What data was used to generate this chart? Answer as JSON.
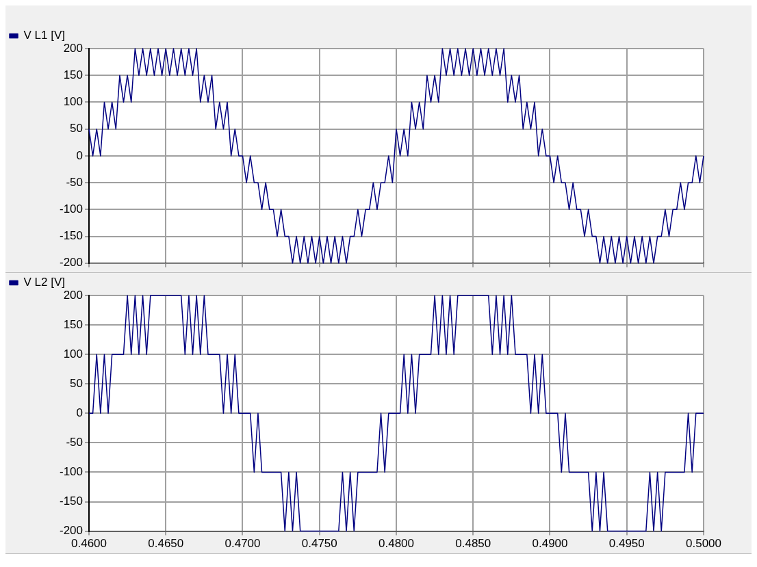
{
  "chart_data": [
    {
      "type": "line",
      "legend": "top left",
      "grid": true,
      "marker": "none",
      "line_style": "solid",
      "tick_labels": "y",
      "x": [
        0.46,
        0.46025,
        0.4605,
        0.46075,
        0.461,
        0.46125,
        0.4615,
        0.46175,
        0.462,
        0.46225,
        0.4625,
        0.46275,
        0.463,
        0.46325,
        0.4635,
        0.46375,
        0.464,
        0.46425,
        0.4645,
        0.46475,
        0.465,
        0.46525,
        0.4655,
        0.46575,
        0.466,
        0.46625,
        0.4665,
        0.46675,
        0.467,
        0.46725,
        0.4675,
        0.46775,
        0.468,
        0.46825,
        0.4685,
        0.46875,
        0.469,
        0.46925,
        0.4695,
        0.46975,
        0.47,
        0.47025,
        0.4705,
        0.47075,
        0.471,
        0.47125,
        0.4715,
        0.47175,
        0.472,
        0.47225,
        0.4725,
        0.47275,
        0.473,
        0.47325,
        0.4735,
        0.47375,
        0.474,
        0.47425,
        0.4745,
        0.47475,
        0.475,
        0.47525,
        0.4755,
        0.47575,
        0.476,
        0.47625,
        0.4765,
        0.47675,
        0.477,
        0.47725,
        0.4775,
        0.47775,
        0.478,
        0.47825,
        0.4785,
        0.47875,
        0.479,
        0.47925,
        0.4795,
        0.47975,
        0.48,
        0.48025,
        0.4805,
        0.48075,
        0.481,
        0.48125,
        0.4815,
        0.48175,
        0.482,
        0.48225,
        0.4825,
        0.48275,
        0.483,
        0.48325,
        0.4835,
        0.48375,
        0.484,
        0.48425,
        0.4845,
        0.48475,
        0.485,
        0.48525,
        0.4855,
        0.48575,
        0.486,
        0.48625,
        0.4865,
        0.48675,
        0.487,
        0.48725,
        0.4875,
        0.48775,
        0.488,
        0.48825,
        0.4885,
        0.48875,
        0.489,
        0.48925,
        0.4895,
        0.48975,
        0.49,
        0.49025,
        0.4905,
        0.49075,
        0.491,
        0.49125,
        0.4915,
        0.49175,
        0.492,
        0.49225,
        0.4925,
        0.49275,
        0.493,
        0.49325,
        0.4935,
        0.49375,
        0.494,
        0.49425,
        0.4945,
        0.49475,
        0.495,
        0.49525,
        0.4955,
        0.49575,
        0.496,
        0.49625,
        0.4965,
        0.49675,
        0.497,
        0.49725,
        0.4975,
        0.49775,
        0.498,
        0.49825,
        0.4985,
        0.49875,
        0.499,
        0.49925,
        0.4995,
        0.49975,
        0.5
      ],
      "xlim": [
        0.46,
        0.5
      ],
      "xticks": [
        0.46,
        0.465,
        0.47,
        0.475,
        0.48,
        0.485,
        0.49,
        0.495,
        0.5
      ],
      "ylim": [
        -200,
        200
      ],
      "yticks": [
        -200,
        -150,
        -100,
        -50,
        0,
        50,
        100,
        150,
        200
      ],
      "series": [
        {
          "name": "V L1 [V]",
          "color": "#000080",
          "values": [
            50,
            0,
            50,
            0,
            100,
            50,
            100,
            50,
            150,
            100,
            150,
            100,
            200,
            150,
            200,
            150,
            200,
            150,
            200,
            150,
            200,
            150,
            200,
            150,
            200,
            150,
            200,
            150,
            200,
            100,
            150,
            100,
            150,
            50,
            100,
            50,
            100,
            0,
            50,
            0,
            0,
            -50,
            0,
            -50,
            -50,
            -100,
            -50,
            -100,
            -100,
            -150,
            -100,
            -150,
            -150,
            -200,
            -150,
            -200,
            -150,
            -200,
            -150,
            -200,
            -150,
            -200,
            -150,
            -200,
            -150,
            -200,
            -150,
            -200,
            -150,
            -150,
            -100,
            -150,
            -100,
            -100,
            -50,
            -100,
            -50,
            -50,
            0,
            -50,
            50,
            0,
            50,
            0,
            100,
            50,
            100,
            50,
            150,
            100,
            150,
            100,
            200,
            150,
            200,
            150,
            200,
            150,
            200,
            150,
            200,
            150,
            200,
            150,
            200,
            150,
            200,
            150,
            200,
            100,
            150,
            100,
            150,
            50,
            100,
            50,
            100,
            0,
            50,
            0,
            0,
            -50,
            0,
            -50,
            -50,
            -100,
            -50,
            -100,
            -100,
            -150,
            -100,
            -150,
            -150,
            -200,
            -150,
            -200,
            -150,
            -200,
            -150,
            -200,
            -150,
            -200,
            -150,
            -200,
            -150,
            -200,
            -150,
            -200,
            -150,
            -150,
            -100,
            -150,
            -100,
            -100,
            -50,
            -100,
            -50,
            -50,
            0,
            -50,
            0
          ]
        }
      ]
    },
    {
      "type": "line",
      "legend": "top left",
      "grid": true,
      "marker": "none",
      "line_style": "solid",
      "x": [
        0.46,
        0.46025,
        0.4605,
        0.46075,
        0.461,
        0.46125,
        0.4615,
        0.46175,
        0.462,
        0.46225,
        0.4625,
        0.46275,
        0.463,
        0.46325,
        0.4635,
        0.46375,
        0.464,
        0.46425,
        0.4645,
        0.46475,
        0.465,
        0.46525,
        0.4655,
        0.46575,
        0.466,
        0.46625,
        0.4665,
        0.46675,
        0.467,
        0.46725,
        0.4675,
        0.46775,
        0.468,
        0.46825,
        0.4685,
        0.46875,
        0.469,
        0.46925,
        0.4695,
        0.46975,
        0.47,
        0.47025,
        0.4705,
        0.47075,
        0.471,
        0.47125,
        0.4715,
        0.47175,
        0.472,
        0.47225,
        0.4725,
        0.47275,
        0.473,
        0.47325,
        0.4735,
        0.47375,
        0.474,
        0.47425,
        0.4745,
        0.47475,
        0.475,
        0.47525,
        0.4755,
        0.47575,
        0.476,
        0.47625,
        0.4765,
        0.47675,
        0.477,
        0.47725,
        0.4775,
        0.47775,
        0.478,
        0.47825,
        0.4785,
        0.47875,
        0.479,
        0.47925,
        0.4795,
        0.47975,
        0.48,
        0.48025,
        0.4805,
        0.48075,
        0.481,
        0.48125,
        0.4815,
        0.48175,
        0.482,
        0.48225,
        0.4825,
        0.48275,
        0.483,
        0.48325,
        0.4835,
        0.48375,
        0.484,
        0.48425,
        0.4845,
        0.48475,
        0.485,
        0.48525,
        0.4855,
        0.48575,
        0.486,
        0.48625,
        0.4865,
        0.48675,
        0.487,
        0.48725,
        0.4875,
        0.48775,
        0.488,
        0.48825,
        0.4885,
        0.48875,
        0.489,
        0.48925,
        0.4895,
        0.48975,
        0.49,
        0.49025,
        0.4905,
        0.49075,
        0.491,
        0.49125,
        0.4915,
        0.49175,
        0.492,
        0.49225,
        0.4925,
        0.49275,
        0.493,
        0.49325,
        0.4935,
        0.49375,
        0.494,
        0.49425,
        0.4945,
        0.49475,
        0.495,
        0.49525,
        0.4955,
        0.49575,
        0.496,
        0.49625,
        0.4965,
        0.49675,
        0.497,
        0.49725,
        0.4975,
        0.49775,
        0.498,
        0.49825,
        0.4985,
        0.49875,
        0.499,
        0.49925,
        0.4995,
        0.49975,
        0.5
      ],
      "xlim": [
        0.46,
        0.5
      ],
      "xticks": [
        {
          "value": 0.46,
          "label": "0.4600"
        },
        {
          "value": 0.465,
          "label": "0.4650"
        },
        {
          "value": 0.47,
          "label": "0.4700"
        },
        {
          "value": 0.475,
          "label": "0.4750"
        },
        {
          "value": 0.48,
          "label": "0.4800"
        },
        {
          "value": 0.485,
          "label": "0.4850"
        },
        {
          "value": 0.49,
          "label": "0.4900"
        },
        {
          "value": 0.495,
          "label": "0.4950"
        },
        {
          "value": 0.5,
          "label": "0.5000"
        }
      ],
      "ylim": [
        -200,
        200
      ],
      "yticks": [
        -200,
        -150,
        -100,
        -50,
        0,
        50,
        100,
        150,
        200
      ],
      "series": [
        {
          "name": "V L2 [V]",
          "color": "#000080",
          "values": [
            0,
            0,
            100,
            0,
            100,
            0,
            100,
            100,
            100,
            100,
            200,
            100,
            200,
            100,
            200,
            100,
            200,
            200,
            200,
            200,
            200,
            200,
            200,
            200,
            200,
            100,
            200,
            100,
            200,
            100,
            200,
            100,
            100,
            100,
            100,
            0,
            100,
            0,
            100,
            0,
            0,
            0,
            0,
            -100,
            0,
            -100,
            -100,
            -100,
            -100,
            -100,
            -100,
            -200,
            -100,
            -200,
            -100,
            -200,
            -200,
            -200,
            -200,
            -200,
            -200,
            -200,
            -200,
            -200,
            -200,
            -200,
            -100,
            -200,
            -100,
            -200,
            -100,
            -100,
            -100,
            -100,
            -100,
            -100,
            0,
            -100,
            0,
            0,
            0,
            0,
            100,
            0,
            100,
            0,
            100,
            100,
            100,
            100,
            200,
            100,
            200,
            100,
            200,
            100,
            200,
            200,
            200,
            200,
            200,
            200,
            200,
            200,
            200,
            100,
            200,
            100,
            200,
            100,
            200,
            100,
            100,
            100,
            100,
            0,
            100,
            0,
            100,
            0,
            0,
            0,
            0,
            -100,
            0,
            -100,
            -100,
            -100,
            -100,
            -100,
            -100,
            -200,
            -100,
            -200,
            -100,
            -200,
            -200,
            -200,
            -200,
            -200,
            -200,
            -200,
            -200,
            -200,
            -200,
            -200,
            -100,
            -200,
            -100,
            -200,
            -100,
            -100,
            -100,
            -100,
            -100,
            -100,
            0,
            -100,
            0,
            0,
            0
          ]
        }
      ]
    }
  ]
}
